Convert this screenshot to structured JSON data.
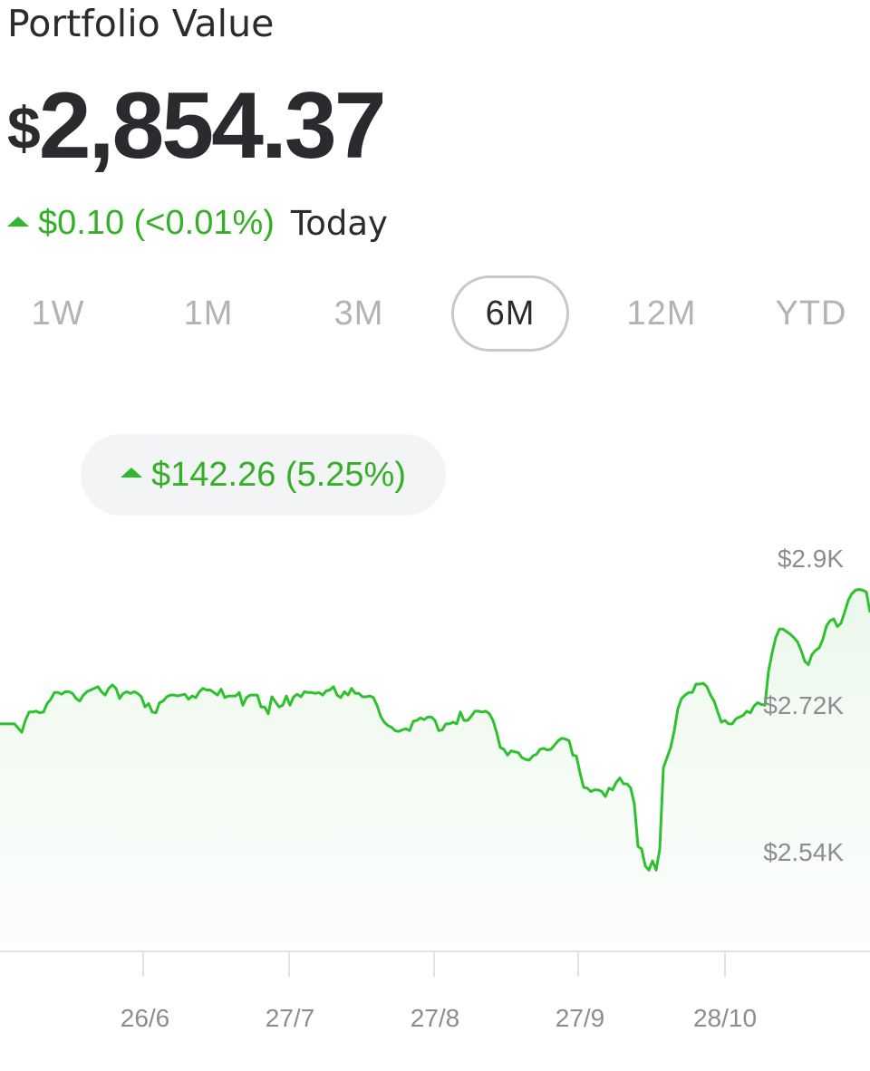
{
  "header": {
    "title": "Portfolio Value",
    "currency_symbol": "$",
    "value": "2,854.37",
    "today_change": "$0.10 (<0.01%)",
    "today_label": "Today"
  },
  "ranges": [
    "1W",
    "1M",
    "3M",
    "6M",
    "12M",
    "YTD"
  ],
  "active_range": "6M",
  "period_change": "$142.26 (5.25%)",
  "colors": {
    "positive": "#34b027",
    "line": "#2dc22d",
    "text": "#2b2b2f",
    "muted": "#b3b3b7",
    "pill_bg": "#f3f4f5"
  },
  "chart_data": {
    "type": "area",
    "y_axis_labels": [
      "$2.9K",
      "$2.72K",
      "$2.54K"
    ],
    "x_axis_labels": [
      "26/6",
      "27/7",
      "27/8",
      "27/9",
      "28/10"
    ],
    "ylim": [
      2440,
      2920
    ],
    "series": [
      {
        "values": [
          2708,
          2708,
          2708,
          2708,
          2708,
          2703,
          2698,
          2712,
          2722,
          2722,
          2723,
          2721,
          2722,
          2732,
          2737,
          2745,
          2745,
          2743,
          2746,
          2746,
          2744,
          2738,
          2735,
          2742,
          2746,
          2748,
          2750,
          2752,
          2746,
          2742,
          2750,
          2754,
          2750,
          2738,
          2744,
          2746,
          2744,
          2746,
          2744,
          2740,
          2728,
          2732,
          2722,
          2721,
          2733,
          2735,
          2740,
          2742,
          2742,
          2741,
          2742,
          2743,
          2737,
          2741,
          2739,
          2746,
          2750,
          2748,
          2748,
          2745,
          2742,
          2749,
          2739,
          2741,
          2741,
          2741,
          2745,
          2730,
          2739,
          2742,
          2742,
          2742,
          2728,
          2728,
          2720,
          2740,
          2734,
          2728,
          2730,
          2741,
          2730,
          2740,
          2743,
          2740,
          2746,
          2745,
          2745,
          2744,
          2745,
          2742,
          2747,
          2748,
          2752,
          2742,
          2739,
          2746,
          2742,
          2750,
          2744,
          2744,
          2740,
          2740,
          2741,
          2739,
          2730,
          2717,
          2710,
          2706,
          2704,
          2700,
          2699,
          2701,
          2702,
          2700,
          2711,
          2712,
          2715,
          2713,
          2716,
          2716,
          2712,
          2700,
          2701,
          2708,
          2708,
          2710,
          2708,
          2722,
          2712,
          2712,
          2717,
          2723,
          2723,
          2722,
          2723,
          2720,
          2712,
          2698,
          2680,
          2678,
          2671,
          2676,
          2675,
          2674,
          2668,
          2666,
          2665,
          2670,
          2672,
          2678,
          2679,
          2677,
          2678,
          2683,
          2688,
          2691,
          2690,
          2688,
          2671,
          2670,
          2650,
          2633,
          2632,
          2628,
          2630,
          2630,
          2628,
          2622,
          2632,
          2630,
          2639,
          2644,
          2637,
          2637,
          2632,
          2613,
          2563,
          2560,
          2540,
          2535,
          2546,
          2535,
          2560,
          2656,
          2668,
          2680,
          2700,
          2726,
          2738,
          2742,
          2745,
          2745,
          2755,
          2755,
          2756,
          2752,
          2742,
          2735,
          2722,
          2710,
          2712,
          2708,
          2708,
          2714,
          2716,
          2718,
          2723,
          2721,
          2729,
          2733,
          2731,
          2730,
          2770,
          2792,
          2810,
          2820,
          2820,
          2817,
          2814,
          2810,
          2805,
          2795,
          2782,
          2778,
          2790,
          2795,
          2798,
          2808,
          2824,
          2830,
          2832,
          2823,
          2827,
          2840,
          2854,
          2862,
          2866,
          2867,
          2866,
          2864,
          2840
        ]
      }
    ]
  }
}
